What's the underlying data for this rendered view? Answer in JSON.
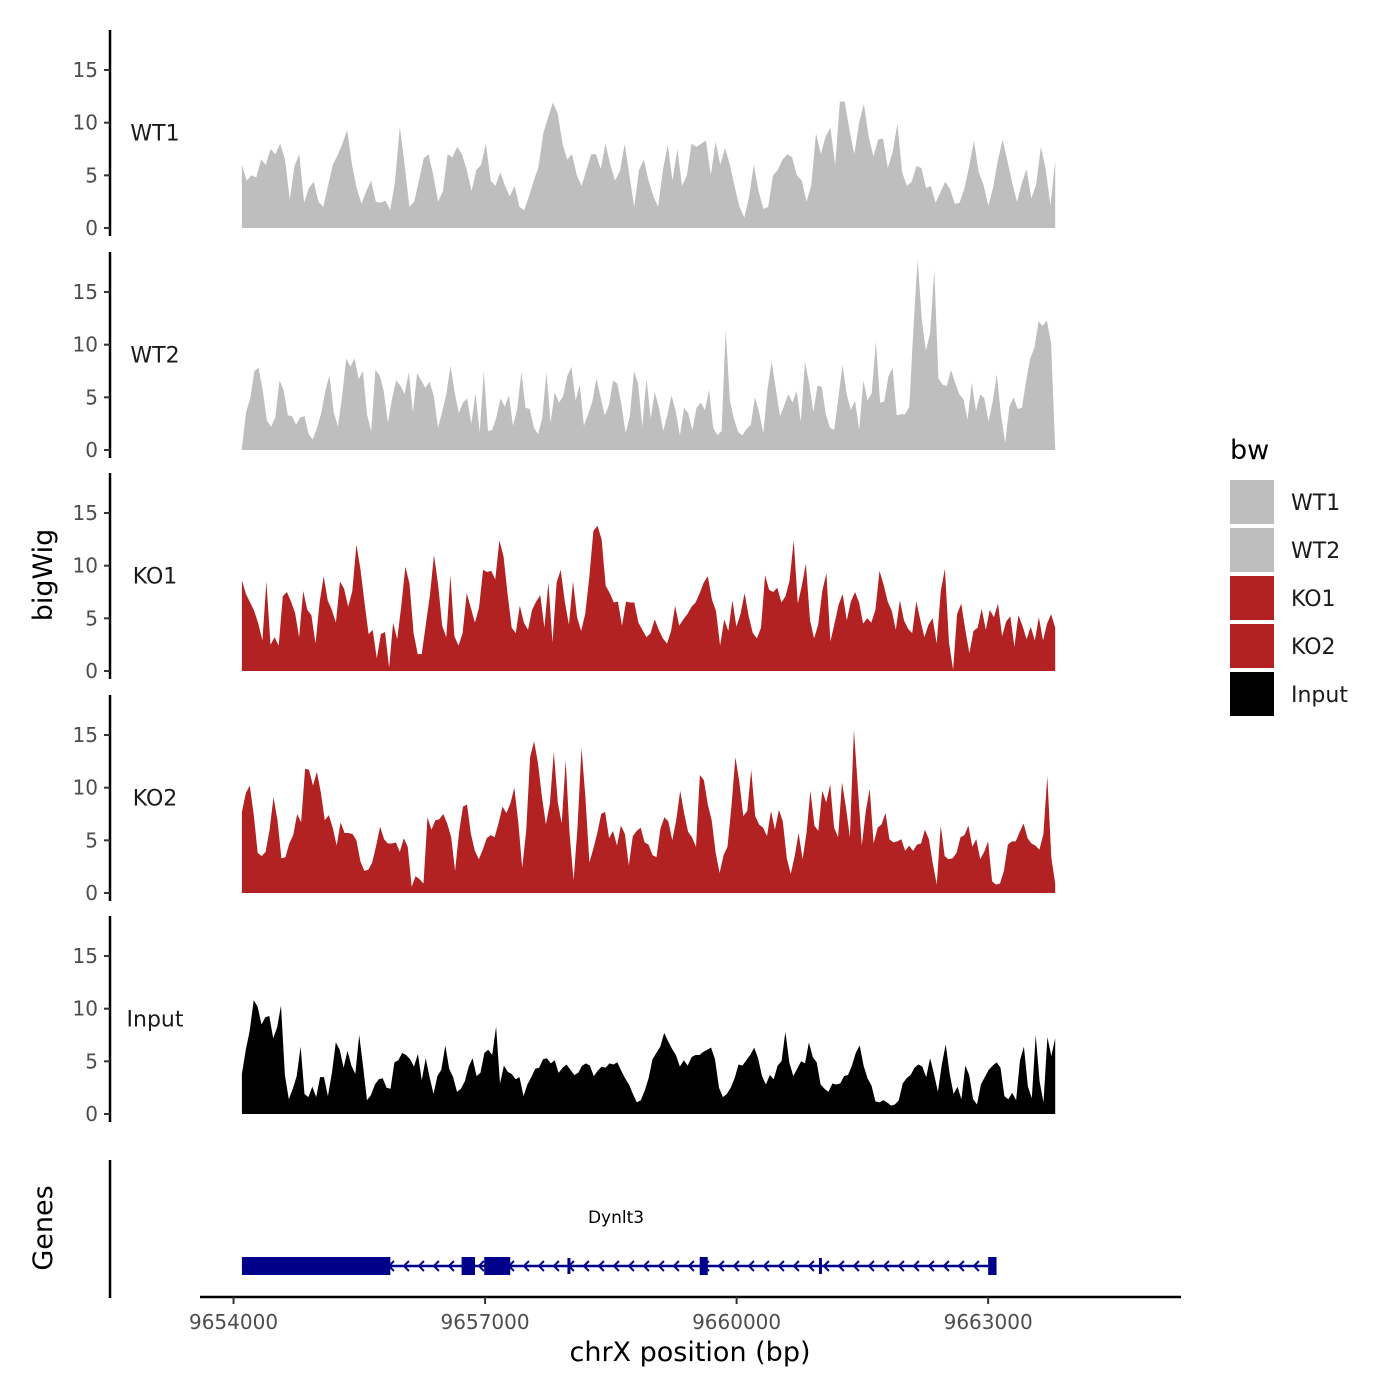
{
  "chart_data": {
    "type": "area",
    "title": "",
    "xlabel": "chrX position (bp)",
    "ylabel": "bigWig",
    "genes_label": "Genes",
    "xlim": [
      9653600,
      9665300
    ],
    "x_range": [
      9654100,
      9663800
    ],
    "xticks": [
      9654000,
      9657000,
      9660000,
      9663000
    ],
    "xtick_labels": [
      "9654000",
      "9657000",
      "9660000",
      "9663000"
    ],
    "ylim": [
      0,
      18.8
    ],
    "yticks": [
      0,
      5,
      10,
      15
    ],
    "ytick_labels": [
      "0",
      "5",
      "10",
      "15"
    ],
    "legend": {
      "title": "bw",
      "position": "right",
      "entries": [
        {
          "label": "WT1",
          "color": "#bebebe"
        },
        {
          "label": "WT2",
          "color": "#bebebe"
        },
        {
          "label": "KO1",
          "color": "#b22222"
        },
        {
          "label": "KO2",
          "color": "#b22222"
        },
        {
          "label": "Input",
          "color": "#000000"
        }
      ]
    },
    "series": [
      {
        "name": "WT1",
        "color": "#bebebe",
        "values": [
          6,
          4.5,
          5,
          4.8,
          6.5,
          6,
          7.5,
          7,
          8,
          6.5,
          2.7,
          5.9,
          7,
          2.4,
          3.8,
          4.4,
          2.5,
          2,
          4,
          6,
          6.9,
          8,
          9.3,
          6,
          3.8,
          2.3,
          3.5,
          4.5,
          2.5,
          2.4,
          2.6,
          1.7,
          4.4,
          9.6,
          6,
          2,
          2.5,
          4.5,
          6.6,
          7,
          5,
          2.5,
          3.5,
          7,
          6.7,
          7.7,
          7,
          5.5,
          3.5,
          5.5,
          6,
          8,
          4.5,
          4,
          5.3,
          4,
          3,
          4,
          2,
          1.7,
          3,
          4.5,
          5.8,
          9,
          10.5,
          11.9,
          10.9,
          8,
          6.5,
          7,
          5,
          4,
          5.5,
          7,
          7,
          5.6,
          8,
          6,
          4.5,
          5.4,
          8,
          5,
          2,
          5.5,
          6.5,
          4.5,
          3,
          2,
          5.5,
          7.9,
          4.5,
          7.5,
          4,
          5,
          8,
          7.7,
          8,
          8.3,
          5,
          8.2,
          6,
          7.6,
          6,
          3.9,
          2,
          1,
          2.9,
          6,
          3.5,
          1.8,
          2,
          5,
          5.5,
          6.5,
          7,
          6.7,
          5,
          4.5,
          2.5,
          4,
          9,
          7,
          8.7,
          9.5,
          6,
          12,
          12,
          9.3,
          7,
          10,
          11.8,
          8.7,
          6.8,
          8.4,
          8.5,
          5.7,
          7.2,
          9.9,
          5.3,
          4,
          4.4,
          5.9,
          5.7,
          3.8,
          4,
          2.4,
          3.4,
          4.4,
          3.7,
          2.3,
          2.4,
          3.7,
          5.8,
          8.3,
          5.3,
          4.1,
          2.1,
          3.8,
          6.4,
          8.4,
          6.4,
          4.3,
          2.5,
          4.2,
          5.6,
          2.8,
          4.1,
          7.7,
          5.6,
          2.1,
          6.4
        ]
      },
      {
        "name": "WT2",
        "color": "#bebebe",
        "values": [
          0.2,
          3.6,
          4.9,
          7.5,
          7.8,
          5.6,
          2.8,
          2.2,
          3.1,
          6.6,
          5.7,
          3.3,
          3.2,
          2.4,
          3.1,
          3.2,
          1.5,
          1,
          2.1,
          3.5,
          5.6,
          7.1,
          3.6,
          2.2,
          5,
          8.7,
          7.9,
          8.7,
          6.7,
          7.5,
          3.4,
          1.8,
          7.6,
          7.1,
          5.6,
          2.6,
          4.9,
          6.6,
          6.1,
          5.3,
          7.4,
          3.6,
          7.3,
          6.6,
          5.9,
          6.5,
          5.1,
          2.1,
          3.6,
          5.3,
          8,
          5.5,
          3.5,
          4.5,
          4.9,
          2.5,
          5.4,
          1.7,
          7.5,
          1.8,
          1.9,
          3.1,
          4.9,
          4.1,
          5.2,
          2.3,
          3.9,
          7.4,
          4,
          3.9,
          2.1,
          1.5,
          3,
          7.4,
          2.6,
          5.5,
          4.5,
          5.1,
          7,
          7.9,
          4.7,
          6.2,
          2.3,
          3.4,
          4.6,
          6.8,
          5,
          3.3,
          4.3,
          6.6,
          6.3,
          4.3,
          1.6,
          3.2,
          7.5,
          6.3,
          2.2,
          6.8,
          3,
          5.5,
          4,
          1.8,
          3.3,
          5.2,
          3.7,
          1.4,
          4,
          3.5,
          1.9,
          4,
          4.5,
          3.8,
          5.7,
          2.1,
          1.4,
          1.8,
          11.4,
          4.7,
          2.9,
          1.7,
          1.4,
          2,
          2.4,
          5,
          3.6,
          1.6,
          5.7,
          8.4,
          5.8,
          3.2,
          4.2,
          5.3,
          4.5,
          5.6,
          2.7,
          8.4,
          6.3,
          3.6,
          6.1,
          6,
          3.4,
          2.1,
          1.9,
          4.9,
          8.1,
          5.3,
          3.8,
          4.7,
          1.9,
          6.6,
          4.7,
          5.4,
          10.3,
          4.5,
          4.6,
          7,
          7.8,
          3.3,
          3.4,
          3.4,
          4.1,
          11.5,
          18.1,
          12.4,
          9.4,
          11.1,
          17.1,
          6.8,
          6.2,
          6.1,
          7.6,
          6.4,
          5.3,
          4.8,
          2.9,
          6.4,
          3.7,
          5.3,
          4.9,
          2.7,
          4.6,
          7.2,
          3.3,
          0.7,
          4.1,
          5,
          3.9,
          4,
          6.5,
          8.7,
          9.7,
          12.2,
          11.8,
          12.3,
          10.1,
          0.1
        ]
      },
      {
        "name": "KO1",
        "color": "#b22222",
        "values": [
          8.6,
          7.3,
          6.5,
          5.7,
          4.5,
          2.9,
          8.5,
          2.5,
          3.2,
          2.4,
          7.1,
          7.5,
          6.6,
          5.5,
          3.2,
          7.6,
          5.8,
          5.3,
          2.6,
          6.5,
          9,
          6.7,
          5.8,
          4.6,
          8.5,
          7.8,
          6.1,
          7.6,
          12,
          9.7,
          6.5,
          3.5,
          3.9,
          1.2,
          3.5,
          3.7,
          0.3,
          4.6,
          3,
          6.2,
          9.9,
          8.3,
          3.6,
          1.6,
          1.6,
          4.4,
          7.2,
          11,
          8.2,
          4.3,
          3.2,
          9.1,
          3.3,
          2.4,
          3.6,
          7.4,
          6,
          4.6,
          6,
          9.6,
          9.4,
          9.5,
          8.7,
          12.4,
          10.9,
          7.3,
          4.1,
          3.6,
          6.2,
          4.6,
          3.9,
          5.8,
          6.6,
          7.2,
          4.1,
          8.4,
          2.7,
          8.4,
          9.6,
          6.6,
          4.4,
          8.5,
          5.1,
          3.8,
          5.4,
          8.9,
          13.3,
          13.8,
          12.5,
          8.1,
          7.4,
          6.5,
          6.6,
          4.3,
          6.6,
          6.5,
          6.5,
          4.6,
          3.9,
          3.2,
          3.6,
          4.9,
          3.9,
          3.1,
          2.6,
          3.8,
          6.2,
          4.3,
          4.9,
          5.4,
          6.1,
          6.5,
          7.4,
          8.4,
          9,
          6.8,
          5.7,
          2.4,
          4.9,
          3.8,
          6.7,
          4.2,
          5.4,
          7.4,
          5.2,
          3.6,
          3.1,
          4.1,
          9.1,
          7.7,
          7.5,
          7.9,
          6.5,
          7.1,
          8.6,
          12.4,
          6.4,
          8.1,
          10.2,
          4.8,
          3.1,
          4.4,
          7.6,
          9.3,
          2.8,
          4.5,
          6.3,
          7.3,
          4.8,
          6.6,
          7.5,
          6.5,
          4.5,
          5,
          4.6,
          5.8,
          9.5,
          8.2,
          6.6,
          5.7,
          3.9,
          6.7,
          4.8,
          4,
          3.6,
          6.6,
          4.8,
          3.2,
          4.4,
          5,
          2.6,
          7.6,
          9.7,
          2.7,
          0.1,
          5.4,
          6.4,
          3.9,
          1.7,
          3.8,
          4.1,
          5.9,
          3.9,
          5.8,
          5.1,
          6.4,
          3.3,
          4.7,
          5.2,
          2.3,
          5.3,
          4.3,
          3,
          4.2,
          2.9,
          5.1,
          2.9,
          4.5,
          5.4,
          4.1
        ]
      },
      {
        "name": "KO2",
        "color": "#b22222",
        "values": [
          7.7,
          9.5,
          10.2,
          7.4,
          3.8,
          3.5,
          3.9,
          6,
          9.1,
          6.9,
          3.3,
          3.4,
          4.7,
          5.5,
          7.5,
          6.7,
          11.8,
          11.7,
          10.2,
          11.5,
          9.5,
          6.9,
          7.4,
          6.2,
          4.5,
          6.7,
          5.7,
          5.7,
          5.6,
          5,
          3,
          2.1,
          2.2,
          2.9,
          4.5,
          6.3,
          5.1,
          4.7,
          4.7,
          4.8,
          3.9,
          5.2,
          4.4,
          0.6,
          1.6,
          1.3,
          0.9,
          7.2,
          6,
          6.9,
          7,
          7.5,
          6.6,
          5.3,
          2.1,
          5.8,
          8.2,
          8.4,
          5.6,
          4,
          3.2,
          4.1,
          5.2,
          5.5,
          5.3,
          6.6,
          8.2,
          7.6,
          8.5,
          10,
          6.7,
          2.4,
          5.9,
          12.9,
          14.4,
          12.3,
          9.1,
          6.5,
          8.5,
          13.4,
          8.6,
          6.6,
          12.6,
          5.6,
          1.2,
          6.2,
          13.8,
          9.1,
          2.9,
          4.2,
          5.7,
          7.5,
          7.7,
          5.2,
          5.9,
          4.5,
          6.4,
          5.6,
          2.6,
          5.4,
          5.9,
          6.2,
          4.8,
          4.6,
          3.6,
          3.4,
          6.1,
          7.2,
          6.8,
          5,
          6.9,
          9.7,
          7.6,
          5.8,
          5.3,
          4.4,
          11.2,
          10.7,
          8.4,
          6.9,
          3.8,
          1.9,
          3.6,
          4.4,
          8.3,
          12.9,
          10.5,
          7.3,
          7.8,
          11.7,
          7.3,
          6.5,
          6.2,
          5.4,
          7.8,
          6,
          7.9,
          6.8,
          3.3,
          1.8,
          3.5,
          5.7,
          3.2,
          5.7,
          9.7,
          6.4,
          5.9,
          9.7,
          8.6,
          10.3,
          6.2,
          5.3,
          10.5,
          8.1,
          5.3,
          15.5,
          10.1,
          4.5,
          7.7,
          9.9,
          4.7,
          6.2,
          6.5,
          7.6,
          5.1,
          4.8,
          4.9,
          5.1,
          4,
          4.5,
          4,
          4.6,
          4.7,
          6,
          5.1,
          2.8,
          0.8,
          6.4,
          3.5,
          3.2,
          3.3,
          3.8,
          5.3,
          5.5,
          6.4,
          4.4,
          5.1,
          3.2,
          3.9,
          4.9,
          1.1,
          0.8,
          0.9,
          2.1,
          4.6,
          4.9,
          4.9,
          5.8,
          6.6,
          5.2,
          4.7,
          4.5,
          4.1,
          5.6,
          11.1,
          3.4,
          0.9
        ]
      },
      {
        "name": "Input",
        "color": "#000000",
        "values": [
          3.8,
          6.1,
          7.9,
          10.8,
          10.2,
          8.5,
          9.2,
          9.3,
          7.2,
          8.2,
          10.3,
          3.7,
          1.4,
          2.4,
          3.6,
          6.4,
          1.9,
          1.6,
          2.6,
          1.6,
          3.5,
          3.5,
          1.7,
          3.9,
          6.8,
          6.1,
          4.4,
          6,
          4.6,
          3.8,
          7.5,
          4.5,
          1.3,
          1.8,
          2.8,
          3.3,
          3.4,
          2.5,
          2.4,
          4.9,
          5.1,
          5.8,
          5.6,
          5.2,
          4.5,
          5.7,
          3.2,
          5.3,
          3.5,
          1.9,
          3.6,
          4.2,
          6.5,
          4.3,
          3.5,
          2.1,
          2.4,
          3.1,
          4.5,
          5.3,
          3.6,
          3.9,
          5.8,
          6.1,
          5.6,
          8.3,
          2.9,
          4.6,
          4,
          3.8,
          3.3,
          3.5,
          1.7,
          2.8,
          3.5,
          4.3,
          4.4,
          5.2,
          5.3,
          4.8,
          5.1,
          3.9,
          4.4,
          4.7,
          4.2,
          3.7,
          3.9,
          4.6,
          4.8,
          4.6,
          3.6,
          4.1,
          4.5,
          4.4,
          4.8,
          4.7,
          4.9,
          4.1,
          3.4,
          2.8,
          1.9,
          1.1,
          1.3,
          2.2,
          3.4,
          5.2,
          5.8,
          6.4,
          7.7,
          6.9,
          6.2,
          5.6,
          4.5,
          5.1,
          4.6,
          5.4,
          5.6,
          5.6,
          5.9,
          6.1,
          6.3,
          5.2,
          2.5,
          1.6,
          1.9,
          2.5,
          3.4,
          4.7,
          4.6,
          5.1,
          5.6,
          6.3,
          5.3,
          3.6,
          2.8,
          3.7,
          3.3,
          4.6,
          5,
          7.8,
          4.9,
          3.6,
          4.3,
          5,
          4.8,
          6.8,
          5.4,
          4.9,
          2.8,
          2.4,
          2.1,
          2.9,
          2.8,
          2.9,
          3.6,
          3.7,
          4.6,
          5.8,
          6.5,
          4.6,
          3.4,
          2.7,
          1.2,
          1.1,
          1.3,
          1.1,
          0.8,
          0.9,
          1.3,
          2.9,
          3.4,
          3.7,
          4.4,
          4.7,
          4.5,
          3.5,
          5.3,
          3.8,
          2.1,
          4.7,
          6.6,
          3.8,
          1.9,
          2.6,
          1.4,
          4.6,
          3.7,
          1.4,
          0.9,
          2.8,
          3.5,
          4.2,
          4.6,
          4.9,
          4.4,
          1.7,
          1.4,
          2,
          1.3,
          5.1,
          6.4,
          2.6,
          1.5,
          7.5,
          3.1,
          1.1,
          7.3,
          5.5,
          7.2
        ]
      }
    ],
    "gene_track": {
      "gene_name": "Dynlt3",
      "start": 9654100,
      "end": 9663000,
      "strand": "-",
      "color": "#00008b",
      "exons": [
        [
          9654100,
          9655870
        ],
        [
          9656720,
          9656880
        ],
        [
          9656990,
          9657160
        ],
        [
          9657160,
          9657300
        ],
        [
          9659560,
          9659650
        ],
        [
          9663000,
          9663100
        ]
      ],
      "intron_markers": [
        9658000,
        9661000
      ]
    }
  }
}
